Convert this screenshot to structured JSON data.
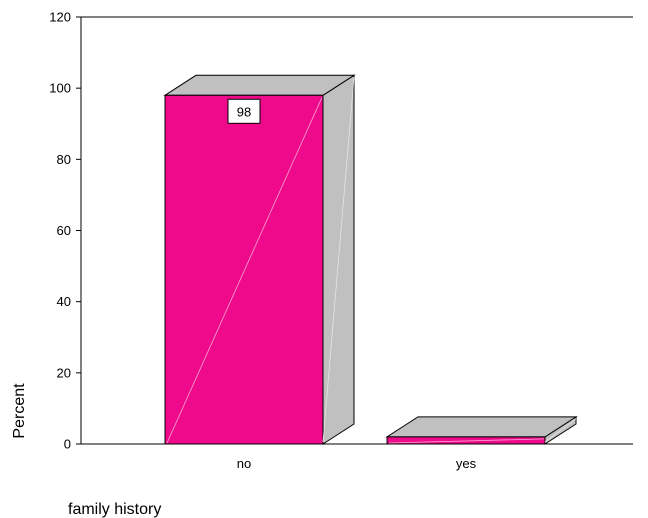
{
  "chart_data": {
    "type": "bar",
    "title": "",
    "xlabel": "family history",
    "ylabel": "Percent",
    "categories": [
      "no",
      "yes"
    ],
    "values": [
      98,
      2
    ],
    "data_labels": [
      "98",
      ""
    ],
    "ylim": [
      0,
      120
    ],
    "yticks": [
      0,
      20,
      40,
      60,
      80,
      100,
      120
    ],
    "grid": false,
    "legend": "none",
    "style": "3d",
    "colors": {
      "bar_front": "#ee0a8a",
      "bar_side": "#c0c0c0",
      "bar_top": "#c0c0c0",
      "outline": "#000000",
      "background": "#ffffff"
    }
  }
}
